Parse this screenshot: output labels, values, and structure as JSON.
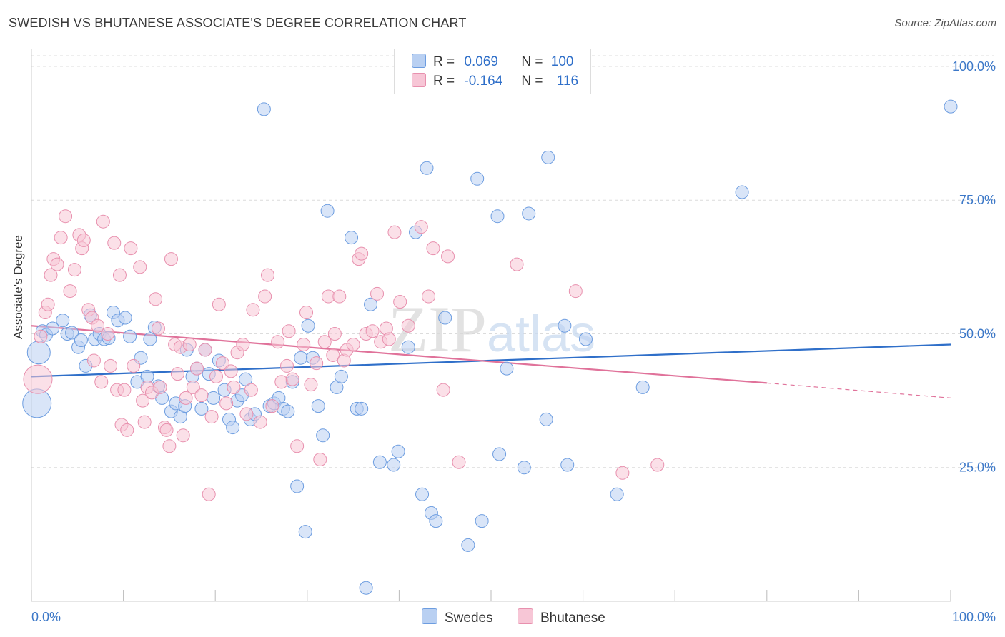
{
  "title": "SWEDISH VS BHUTANESE ASSOCIATE'S DEGREE CORRELATION CHART",
  "source": "Source: ZipAtlas.com",
  "watermark": "ZIPatlas",
  "stats": {
    "blue": {
      "r_label": "R =",
      "r": "0.069",
      "n_label": "N =",
      "n": "100"
    },
    "pink": {
      "r_label": "R =",
      "r": "-0.164",
      "n_label": "N =",
      "n": "116"
    }
  },
  "colors": {
    "blue": "#6d9de0",
    "blue_fill": "#b9d0f2",
    "blue_line": "#2f6fc9",
    "pink": "#e890ae",
    "pink_fill": "#f7c6d6",
    "pink_line": "#e0729a"
  },
  "chart_data": {
    "type": "scatter",
    "xlabel": "",
    "ylabel": "Associate's Degree",
    "xlim": [
      0,
      100
    ],
    "ylim": [
      0,
      102
    ],
    "x_tick_labels": [
      "0.0%",
      "100.0%"
    ],
    "y_tick_labels": [
      "100.0%",
      "75.0%",
      "50.0%",
      "25.0%"
    ],
    "y_ticks": [
      100,
      75,
      50,
      25
    ],
    "grid": true,
    "legend_placement": "bottom-center",
    "series": [
      {
        "name": "Swedes",
        "trend": {
          "x0": 0,
          "y0": 42.0,
          "x1": 100,
          "y1": 48.0
        },
        "points": [
          [
            0.6,
            37.0
          ],
          [
            0.8,
            46.5
          ],
          [
            1.2,
            50.5
          ],
          [
            1.6,
            49.8
          ],
          [
            2.3,
            51.0
          ],
          [
            3.4,
            52.5
          ],
          [
            3.9,
            50.0
          ],
          [
            4.4,
            50.2
          ],
          [
            5.1,
            47.5
          ],
          [
            5.4,
            48.8
          ],
          [
            5.9,
            44.0
          ],
          [
            6.4,
            53.5
          ],
          [
            6.9,
            49.0
          ],
          [
            7.4,
            50.0
          ],
          [
            7.9,
            49.0
          ],
          [
            8.4,
            49.2
          ],
          [
            8.9,
            54.0
          ],
          [
            9.4,
            52.5
          ],
          [
            10.2,
            53.0
          ],
          [
            10.7,
            49.5
          ],
          [
            11.5,
            41.0
          ],
          [
            11.9,
            45.5
          ],
          [
            12.6,
            42.0
          ],
          [
            12.9,
            49.0
          ],
          [
            13.4,
            51.2
          ],
          [
            13.8,
            40.2
          ],
          [
            14.2,
            38.0
          ],
          [
            15.2,
            35.5
          ],
          [
            15.7,
            37.0
          ],
          [
            16.2,
            34.5
          ],
          [
            16.7,
            36.5
          ],
          [
            16.9,
            47.0
          ],
          [
            17.5,
            42.0
          ],
          [
            18.0,
            43.5
          ],
          [
            18.5,
            36.0
          ],
          [
            18.9,
            47.0
          ],
          [
            19.3,
            42.5
          ],
          [
            19.8,
            38.0
          ],
          [
            20.4,
            45.0
          ],
          [
            21.0,
            39.5
          ],
          [
            21.5,
            34.0
          ],
          [
            21.9,
            32.5
          ],
          [
            22.4,
            37.5
          ],
          [
            22.9,
            38.5
          ],
          [
            23.3,
            41.5
          ],
          [
            23.8,
            34.0
          ],
          [
            24.3,
            35.0
          ],
          [
            25.3,
            92.0
          ],
          [
            25.9,
            36.5
          ],
          [
            26.4,
            37.0
          ],
          [
            26.9,
            38.0
          ],
          [
            27.4,
            36.0
          ],
          [
            27.9,
            35.5
          ],
          [
            28.4,
            41.0
          ],
          [
            28.9,
            21.5
          ],
          [
            29.3,
            45.5
          ],
          [
            29.8,
            13.0
          ],
          [
            30.1,
            51.5
          ],
          [
            30.6,
            45.5
          ],
          [
            31.2,
            36.5
          ],
          [
            31.7,
            31.0
          ],
          [
            32.2,
            73.0
          ],
          [
            33.2,
            40.0
          ],
          [
            33.7,
            42.0
          ],
          [
            34.8,
            68.0
          ],
          [
            35.4,
            36.0
          ],
          [
            35.9,
            36.0
          ],
          [
            36.4,
            2.5
          ],
          [
            36.9,
            55.5
          ],
          [
            37.9,
            26.0
          ],
          [
            39.4,
            25.5
          ],
          [
            39.9,
            28.0
          ],
          [
            41.0,
            47.5
          ],
          [
            41.8,
            69.0
          ],
          [
            42.5,
            20.0
          ],
          [
            43.0,
            81.0
          ],
          [
            43.5,
            16.5
          ],
          [
            44.0,
            15.0
          ],
          [
            45.0,
            53.0
          ],
          [
            47.5,
            10.5
          ],
          [
            48.5,
            79.0
          ],
          [
            49.0,
            15.0
          ],
          [
            50.7,
            72.0
          ],
          [
            50.9,
            27.5
          ],
          [
            51.7,
            43.5
          ],
          [
            53.6,
            25.0
          ],
          [
            54.1,
            72.5
          ],
          [
            56.0,
            34.0
          ],
          [
            56.2,
            83.0
          ],
          [
            58.0,
            51.5
          ],
          [
            58.3,
            25.5
          ],
          [
            60.3,
            49.0
          ],
          [
            63.7,
            20.0
          ],
          [
            66.5,
            40.0
          ],
          [
            77.3,
            76.5
          ],
          [
            100.0,
            92.5
          ]
        ]
      },
      {
        "name": "Bhutanese",
        "trend": {
          "x0": 0,
          "y0": 51.5,
          "x1": 80,
          "y1": 40.8,
          "dash_x1": 100,
          "dash_y1": 38.0
        },
        "points": [
          [
            0.7,
            41.5
          ],
          [
            1.0,
            49.5
          ],
          [
            1.5,
            54.0
          ],
          [
            1.8,
            55.5
          ],
          [
            2.1,
            61.0
          ],
          [
            2.4,
            64.0
          ],
          [
            2.8,
            63.0
          ],
          [
            3.2,
            68.0
          ],
          [
            3.7,
            72.0
          ],
          [
            4.2,
            58.0
          ],
          [
            4.7,
            62.0
          ],
          [
            5.2,
            68.5
          ],
          [
            5.5,
            66.0
          ],
          [
            5.7,
            67.5
          ],
          [
            6.2,
            54.5
          ],
          [
            6.6,
            53.0
          ],
          [
            6.8,
            45.0
          ],
          [
            7.2,
            51.5
          ],
          [
            7.6,
            41.0
          ],
          [
            7.8,
            71.0
          ],
          [
            8.3,
            50.0
          ],
          [
            8.6,
            44.0
          ],
          [
            9.0,
            67.0
          ],
          [
            9.3,
            39.5
          ],
          [
            9.6,
            61.0
          ],
          [
            9.8,
            33.0
          ],
          [
            10.1,
            39.5
          ],
          [
            10.4,
            32.0
          ],
          [
            10.8,
            66.0
          ],
          [
            11.1,
            44.0
          ],
          [
            11.8,
            62.5
          ],
          [
            12.1,
            37.5
          ],
          [
            12.3,
            33.5
          ],
          [
            12.6,
            40.0
          ],
          [
            13.1,
            39.0
          ],
          [
            13.5,
            56.5
          ],
          [
            13.8,
            51.0
          ],
          [
            14.0,
            40.0
          ],
          [
            14.5,
            32.5
          ],
          [
            14.7,
            32.0
          ],
          [
            15.0,
            29.0
          ],
          [
            15.2,
            64.0
          ],
          [
            15.6,
            48.0
          ],
          [
            15.9,
            42.5
          ],
          [
            16.2,
            47.5
          ],
          [
            16.5,
            31.0
          ],
          [
            16.8,
            38.0
          ],
          [
            17.2,
            48.0
          ],
          [
            17.6,
            40.0
          ],
          [
            18.0,
            43.5
          ],
          [
            18.5,
            38.5
          ],
          [
            18.9,
            47.0
          ],
          [
            19.3,
            20.0
          ],
          [
            19.6,
            34.5
          ],
          [
            20.1,
            42.0
          ],
          [
            20.4,
            55.5
          ],
          [
            20.8,
            44.5
          ],
          [
            21.2,
            37.0
          ],
          [
            21.7,
            43.0
          ],
          [
            22.0,
            40.0
          ],
          [
            22.4,
            46.5
          ],
          [
            23.0,
            48.0
          ],
          [
            23.4,
            35.0
          ],
          [
            23.9,
            39.5
          ],
          [
            24.1,
            54.5
          ],
          [
            24.9,
            33.5
          ],
          [
            25.4,
            57.0
          ],
          [
            25.7,
            61.0
          ],
          [
            26.2,
            36.5
          ],
          [
            26.8,
            48.5
          ],
          [
            27.2,
            41.0
          ],
          [
            27.8,
            44.0
          ],
          [
            28.0,
            50.5
          ],
          [
            28.4,
            41.5
          ],
          [
            28.9,
            29.0
          ],
          [
            29.6,
            48.0
          ],
          [
            29.9,
            54.0
          ],
          [
            30.4,
            40.5
          ],
          [
            31.0,
            44.5
          ],
          [
            31.4,
            26.5
          ],
          [
            31.9,
            48.5
          ],
          [
            32.3,
            57.0
          ],
          [
            32.8,
            46.0
          ],
          [
            33.0,
            50.0
          ],
          [
            33.5,
            57.0
          ],
          [
            34.0,
            45.0
          ],
          [
            34.3,
            47.0
          ],
          [
            35.0,
            48.0
          ],
          [
            35.6,
            64.0
          ],
          [
            35.9,
            65.0
          ],
          [
            36.4,
            50.0
          ],
          [
            37.1,
            50.5
          ],
          [
            37.6,
            57.5
          ],
          [
            38.0,
            48.5
          ],
          [
            38.6,
            51.0
          ],
          [
            38.9,
            49.0
          ],
          [
            39.5,
            69.0
          ],
          [
            40.1,
            56.0
          ],
          [
            41.0,
            51.5
          ],
          [
            42.4,
            70.0
          ],
          [
            43.2,
            57.0
          ],
          [
            43.7,
            66.0
          ],
          [
            44.8,
            39.5
          ],
          [
            45.3,
            64.5
          ],
          [
            46.5,
            26.0
          ],
          [
            52.8,
            63.0
          ],
          [
            59.2,
            58.0
          ],
          [
            64.3,
            24.0
          ],
          [
            68.1,
            25.5
          ]
        ]
      }
    ]
  }
}
